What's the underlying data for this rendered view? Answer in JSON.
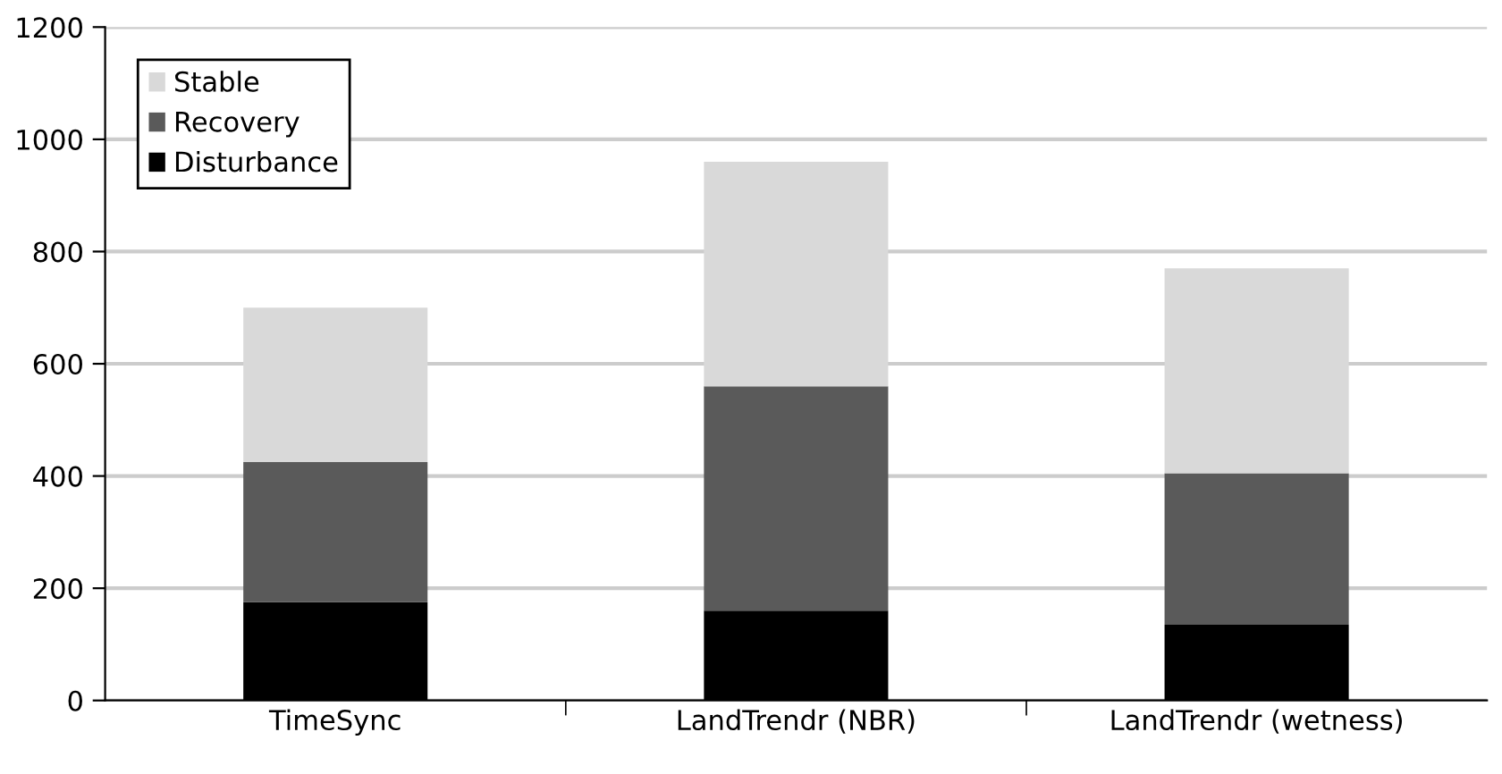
{
  "chart_data": {
    "type": "bar",
    "stacked": true,
    "categories": [
      "TimeSync",
      "LandTrendr (NBR)",
      "LandTrendr (wetness)"
    ],
    "series": [
      {
        "name": "Disturbance",
        "color": "#000000",
        "values": [
          175,
          160,
          135
        ]
      },
      {
        "name": "Recovery",
        "color": "#5a5a5a",
        "values": [
          250,
          400,
          270
        ]
      },
      {
        "name": "Stable",
        "color": "#d9d9d9",
        "values": [
          275,
          400,
          365
        ]
      }
    ],
    "ylim": [
      0,
      1200
    ],
    "yticks": [
      0,
      200,
      400,
      600,
      800,
      1000,
      1200
    ],
    "grid": "y",
    "legend": "top left"
  }
}
